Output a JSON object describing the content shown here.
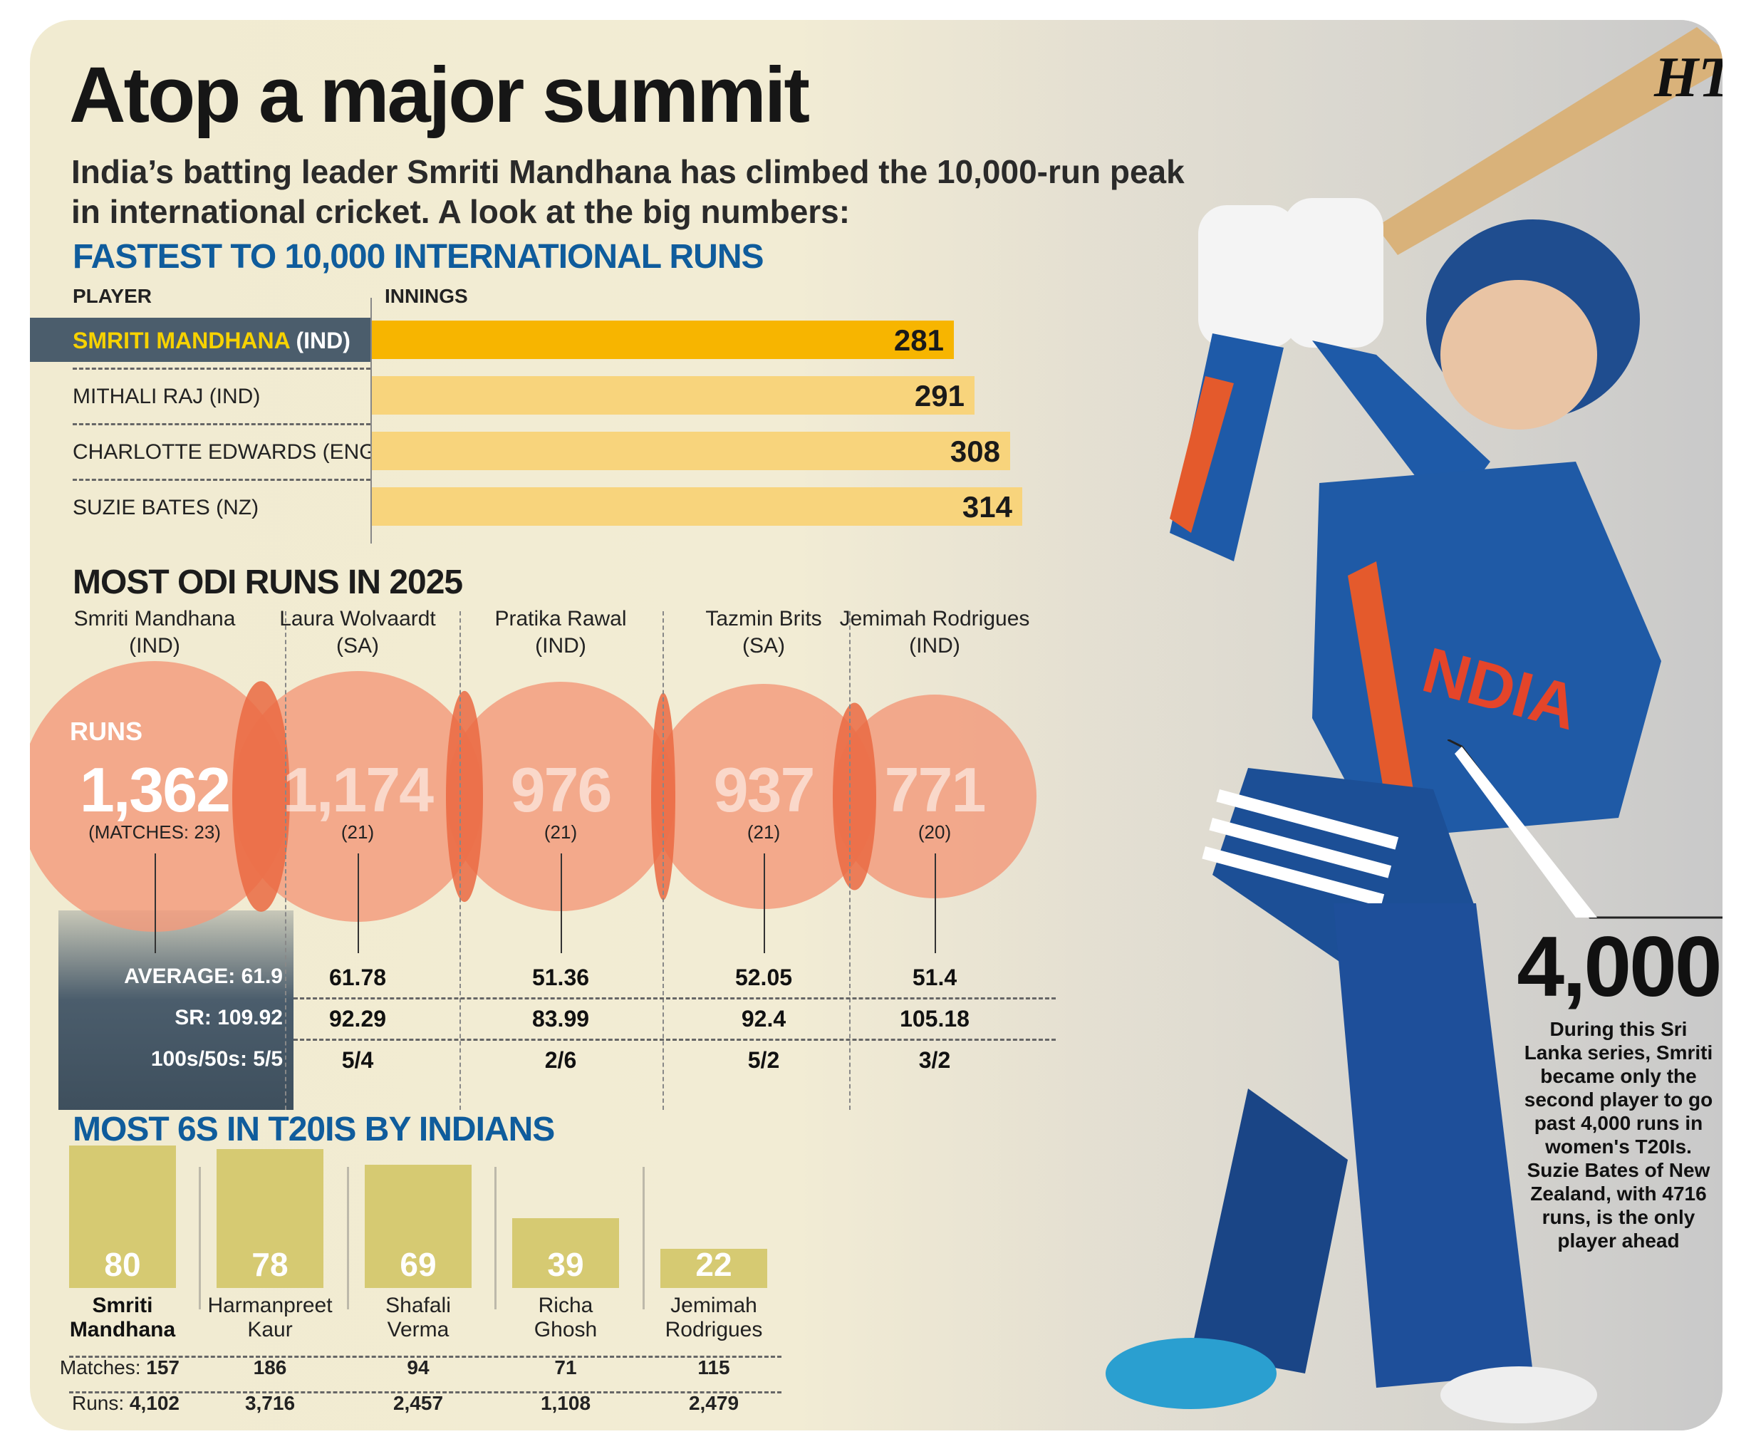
{
  "header": {
    "title": "Atop a major summit",
    "subtitle": "India’s batting leader Smriti Mandhana has climbed the 10,000-run peak in international cricket. A look at the big numbers:",
    "logo": "HT"
  },
  "fastest": {
    "title": "FASTEST TO 10,000 INTERNATIONAL RUNS",
    "col_player": "PLAYER",
    "col_innings": "INNINGS"
  },
  "odi": {
    "title": "MOST ODI RUNS IN 2025",
    "runs_label": "RUNS",
    "avg_label": "AVERAGE:",
    "sr_label": "SR:",
    "hundreds_label": "100s/50s:"
  },
  "sixes": {
    "title": "MOST 6S IN T20IS BY INDIANS",
    "matches_label": "Matches:",
    "runs_label": "Runs:"
  },
  "callout": {
    "value": "4,000",
    "text": "During this Sri Lanka series, Smriti became only the second player to go past 4,000 runs in women's T20Is. Suzie Bates of New Zealand, with 4716 runs, is the only player ahead"
  },
  "chart_data": [
    {
      "type": "bar",
      "orientation": "horizontal",
      "title": "FASTEST TO 10,000 INTERNATIONAL RUNS",
      "categories": [
        "SMRITI MANDHANA",
        "MITHALI RAJ (IND)",
        "CHARLOTTE EDWARDS (ENG)",
        "SUZIE BATES (NZ)"
      ],
      "highlight_suffix": " (IND)",
      "values": [
        281,
        291,
        308,
        314
      ],
      "colors": {
        "highlight": "#f7b500",
        "normal": "#f8d47c",
        "label_bg": "#4b5d6c",
        "label_fg": "#f7d200"
      }
    },
    {
      "type": "bubble",
      "title": "MOST ODI RUNS IN 2025",
      "players": [
        {
          "name": "Smriti Mandhana",
          "country": "(IND)",
          "runs": 1362,
          "runs_label": "1,362",
          "matches": "(MATCHES: 23)",
          "average": "61.9",
          "sr": "109.92",
          "hundreds_fifties": "5/5"
        },
        {
          "name": "Laura Wolvaardt",
          "country": "(SA)",
          "runs": 1174,
          "runs_label": "1,174",
          "matches": "(21)",
          "average": "61.78",
          "sr": "92.29",
          "hundreds_fifties": "5/4"
        },
        {
          "name": "Pratika Rawal",
          "country": "(IND)",
          "runs": 976,
          "runs_label": "976",
          "matches": "(21)",
          "average": "51.36",
          "sr": "83.99",
          "hundreds_fifties": "2/6"
        },
        {
          "name": "Tazmin Brits",
          "country": "(SA)",
          "runs": 937,
          "runs_label": "937",
          "matches": "(21)",
          "average": "52.05",
          "sr": "92.4",
          "hundreds_fifties": "5/2"
        },
        {
          "name": "Jemimah Rodrigues",
          "country": "(IND)",
          "runs": 771,
          "runs_label": "771",
          "matches": "(20)",
          "average": "51.4",
          "sr": "105.18",
          "hundreds_fifties": "3/2"
        }
      ],
      "colors": {
        "bubble": "#f39a7b",
        "overlap": "#ea6a42",
        "stat_panel": "#4b5d6c"
      }
    },
    {
      "type": "bar",
      "title": "MOST 6S IN T20IS BY INDIANS",
      "categories": [
        "Smriti Mandhana",
        "Harmanpreet Kaur",
        "Shafali Verma",
        "Richa Ghosh",
        "Jemimah Rodrigues"
      ],
      "names_line1": [
        "Smriti",
        "Harmanpreet",
        "Shafali",
        "Richa",
        "Jemimah"
      ],
      "names_line2": [
        "Mandhana",
        "Kaur",
        "Verma",
        "Ghosh",
        "Rodrigues"
      ],
      "values": [
        80,
        78,
        69,
        39,
        22
      ],
      "matches": [
        "157",
        "186",
        "94",
        "71",
        "115"
      ],
      "runs": [
        "4,102",
        "3,716",
        "2,457",
        "1,108",
        "2,479"
      ],
      "colors": {
        "bar": "#d6ca72"
      }
    }
  ]
}
